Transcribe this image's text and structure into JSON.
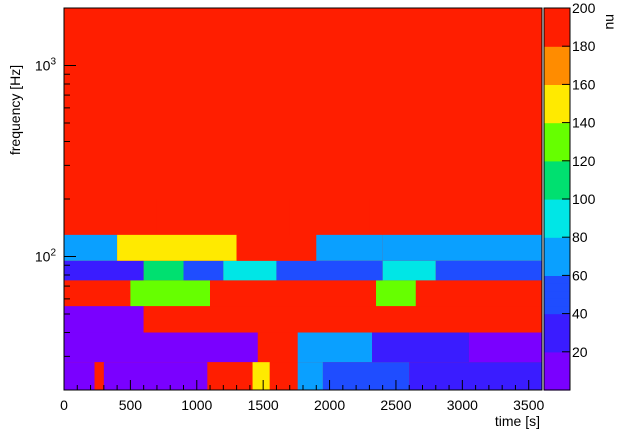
{
  "chart_data": {
    "type": "heatmap",
    "title": "",
    "xlabel": "time [s]",
    "ylabel": "frequency [Hz]",
    "zlabel": "nu",
    "xlim": [
      0,
      3600
    ],
    "ylim": [
      20,
      2000
    ],
    "zlim": [
      0,
      200
    ],
    "y_scale": "log",
    "x_tick_labels": [
      "0",
      "500",
      "1000",
      "1500",
      "2000",
      "2500",
      "3000",
      "3500"
    ],
    "x_ticks": [
      0,
      500,
      1000,
      1500,
      2000,
      2500,
      3000,
      3500
    ],
    "y_tick_labels": [
      "10^2",
      "10^3"
    ],
    "y_ticks": [
      100,
      1000
    ],
    "z_tick_labels": [
      "20",
      "40",
      "60",
      "80",
      "100",
      "120",
      "140",
      "160",
      "180",
      "200"
    ],
    "z_ticks": [
      20,
      40,
      60,
      80,
      100,
      120,
      140,
      160,
      180,
      200
    ],
    "colormap": [
      "#7a00ff",
      "#3a1cff",
      "#1f4dff",
      "#0aa0ff",
      "#00e6e6",
      "#00e070",
      "#66ff00",
      "#ffea00",
      "#ff8c00",
      "#ff1e00"
    ],
    "bands": [
      {
        "freq": [
          20,
          28
        ],
        "segments": [
          [
            0,
            230,
            10
          ],
          [
            230,
            300,
            200
          ],
          [
            300,
            1080,
            10
          ],
          [
            1080,
            1420,
            200
          ],
          [
            1420,
            1550,
            150
          ],
          [
            1550,
            1760,
            200
          ],
          [
            1760,
            1950,
            60
          ],
          [
            1950,
            2600,
            40
          ],
          [
            2600,
            3600,
            30
          ]
        ]
      },
      {
        "freq": [
          28,
          40
        ],
        "segments": [
          [
            0,
            1460,
            10
          ],
          [
            1460,
            1760,
            200
          ],
          [
            1760,
            2320,
            70
          ],
          [
            2320,
            3050,
            30
          ],
          [
            3050,
            3600,
            15
          ]
        ]
      },
      {
        "freq": [
          40,
          55
        ],
        "segments": [
          [
            0,
            600,
            10
          ],
          [
            600,
            3600,
            200
          ]
        ]
      },
      {
        "freq": [
          55,
          75
        ],
        "segments": [
          [
            0,
            500,
            200
          ],
          [
            500,
            1100,
            120
          ],
          [
            1100,
            2100,
            200
          ],
          [
            2100,
            2350,
            200
          ],
          [
            2350,
            2650,
            130
          ],
          [
            2650,
            3600,
            200
          ]
        ]
      },
      {
        "freq": [
          75,
          95
        ],
        "segments": [
          [
            0,
            600,
            20
          ],
          [
            600,
            900,
            110
          ],
          [
            900,
            1200,
            40
          ],
          [
            1200,
            1600,
            80
          ],
          [
            1600,
            2400,
            40
          ],
          [
            2400,
            2800,
            90
          ],
          [
            2800,
            3600,
            50
          ]
        ]
      },
      {
        "freq": [
          95,
          130
        ],
        "segments": [
          [
            0,
            400,
            60
          ],
          [
            400,
            1300,
            140
          ],
          [
            1300,
            1900,
            200
          ],
          [
            1900,
            2400,
            70
          ],
          [
            2400,
            3600,
            60
          ]
        ]
      },
      {
        "freq": [
          130,
          200
        ],
        "segments": [
          [
            0,
            700,
            180
          ],
          [
            700,
            1700,
            200
          ],
          [
            1700,
            2300,
            200
          ],
          [
            2300,
            3600,
            180
          ]
        ]
      },
      {
        "freq": [
          200,
          500
        ],
        "segments": [
          [
            0,
            3600,
            200
          ]
        ]
      },
      {
        "freq": [
          500,
          2000
        ],
        "segments": [
          [
            0,
            3600,
            200
          ]
        ]
      }
    ]
  }
}
